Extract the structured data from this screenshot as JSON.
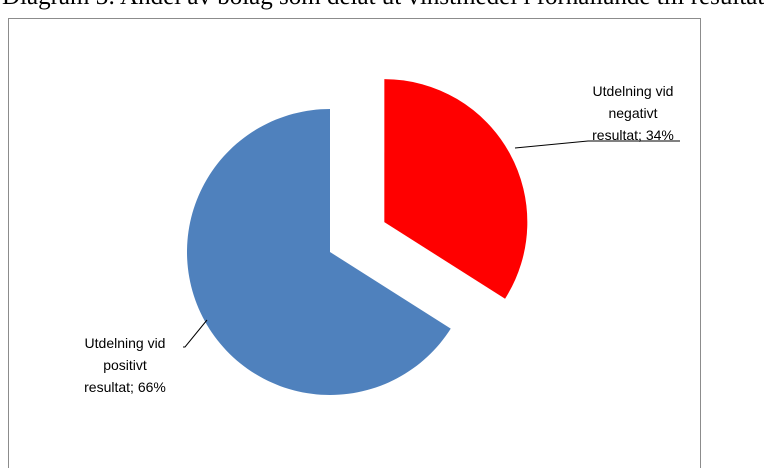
{
  "caption": "Diagram 3: Andel av bolag som delat ut vinstmedel i förhållande till resultat",
  "chart_data": {
    "type": "pie",
    "title": "",
    "slices": [
      {
        "name": "Utdelning vid negativt resultat",
        "value": 34,
        "color": "#ff0000",
        "exploded": true,
        "label_lines": [
          "Utdelning vid",
          "negativt",
          "resultat; 34%"
        ]
      },
      {
        "name": "Utdelning vid positivt resultat",
        "value": 66,
        "color": "#4f81bd",
        "exploded": false,
        "label_lines": [
          "Utdelning vid",
          "positivt",
          "resultat; 66%"
        ]
      }
    ],
    "legend": "none"
  }
}
